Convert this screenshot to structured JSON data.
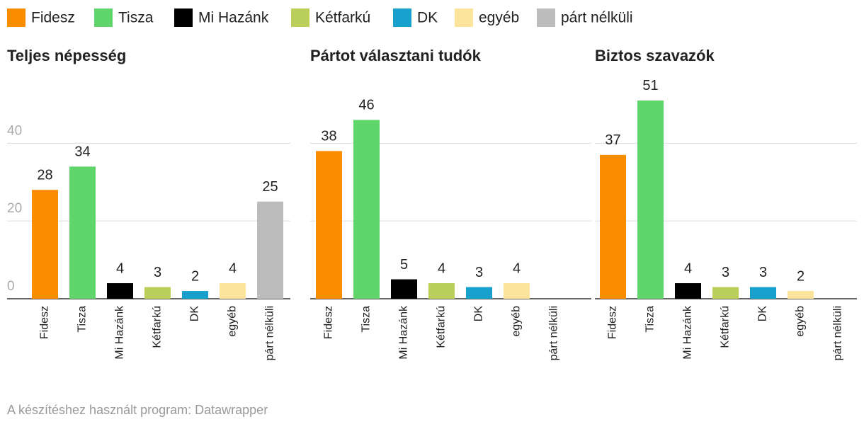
{
  "legend": [
    {
      "name": "Fidesz",
      "color": "#fa8c00"
    },
    {
      "name": "Tisza",
      "color": "#5fd56b"
    },
    {
      "name": "Mi Hazánk",
      "color": "#000000"
    },
    {
      "name": "Kétfarkú",
      "color": "#b9cf5a"
    },
    {
      "name": "DK",
      "color": "#18a1cd"
    },
    {
      "name": "egyéb",
      "color": "#fde49c"
    },
    {
      "name": "párt nélküli",
      "color": "#bcbcbc"
    }
  ],
  "chart_data": [
    {
      "type": "bar",
      "title": "Teljes népesség",
      "categories": [
        "Fidesz",
        "Tisza",
        "Mi Hazánk",
        "Kétfarkú",
        "DK",
        "egyéb",
        "párt nélküli"
      ],
      "values": [
        28,
        34,
        4,
        3,
        2,
        4,
        25
      ],
      "ylim": [
        0,
        55
      ],
      "yticks": [
        0,
        20,
        40
      ],
      "grid": true
    },
    {
      "type": "bar",
      "title": "Pártot választani tudók",
      "categories": [
        "Fidesz",
        "Tisza",
        "Mi Hazánk",
        "Kétfarkú",
        "DK",
        "egyéb",
        "párt nélküli"
      ],
      "values": [
        38,
        46,
        5,
        4,
        3,
        4,
        null
      ],
      "ylim": [
        0,
        55
      ],
      "yticks": [
        0,
        20,
        40
      ],
      "grid": true
    },
    {
      "type": "bar",
      "title": "Biztos szavazók",
      "categories": [
        "Fidesz",
        "Tisza",
        "Mi Hazánk",
        "Kétfarkú",
        "DK",
        "egyéb",
        "párt nélküli"
      ],
      "values": [
        37,
        51,
        4,
        3,
        3,
        2,
        null
      ],
      "ylim": [
        0,
        55
      ],
      "yticks": [
        0,
        20,
        40
      ],
      "grid": true
    }
  ],
  "footer": "A készítéshez használt program: Datawrapper"
}
